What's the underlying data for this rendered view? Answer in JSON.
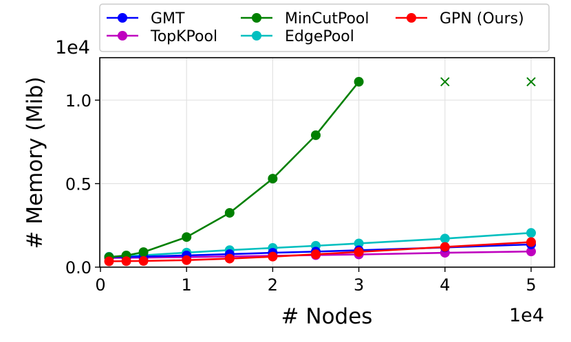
{
  "chart_data": {
    "type": "line",
    "xlabel": "# Nodes",
    "ylabel": "# Memory (Mib)",
    "x_scale_label": "1e4",
    "y_scale_label": "1e4",
    "xlim": [
      0,
      5.25
    ],
    "ylim": [
      0,
      1.25
    ],
    "xticks": [
      0,
      1,
      2,
      3,
      4,
      5
    ],
    "xtick_labels": [
      "0",
      "1",
      "2",
      "3",
      "4",
      "5"
    ],
    "yticks": [
      0.0,
      0.5,
      1.0
    ],
    "ytick_labels": [
      "0.0",
      "0.5",
      "1.0"
    ],
    "grid": true,
    "legend_position": "top, above plot",
    "x": [
      0.1,
      0.3,
      0.5,
      1.0,
      1.5,
      2.0,
      2.5,
      3.0,
      4.0,
      5.0
    ],
    "series": [
      {
        "name": "GMT",
        "color": "#0000ff",
        "marker": "circle",
        "values": [
          0.06,
          0.061,
          0.063,
          0.07,
          0.078,
          0.086,
          0.093,
          0.101,
          0.118,
          0.136
        ]
      },
      {
        "name": "TopKPool",
        "color": "#bf00bf",
        "marker": "circle",
        "values": [
          0.055,
          0.056,
          0.057,
          0.06,
          0.064,
          0.068,
          0.072,
          0.076,
          0.086,
          0.094
        ]
      },
      {
        "name": "MinCutPool",
        "color": "#008000",
        "marker": "circle",
        "values": [
          0.06,
          0.07,
          0.09,
          0.18,
          0.325,
          0.53,
          0.79,
          1.11,
          null,
          null
        ],
        "oom_markers": [
          {
            "x": 4.0,
            "y": 1.11
          },
          {
            "x": 5.0,
            "y": 1.11
          }
        ]
      },
      {
        "name": "EdgePool",
        "color": "#00bfbf",
        "marker": "circle",
        "values": [
          0.062,
          0.066,
          0.071,
          0.087,
          0.102,
          0.115,
          0.128,
          0.142,
          0.171,
          0.205
        ]
      },
      {
        "name": "GPN (Ours)",
        "color": "#ff0000",
        "marker": "circle",
        "values": [
          0.035,
          0.036,
          0.037,
          0.042,
          0.051,
          0.063,
          0.077,
          0.091,
          0.121,
          0.15
        ]
      }
    ]
  }
}
